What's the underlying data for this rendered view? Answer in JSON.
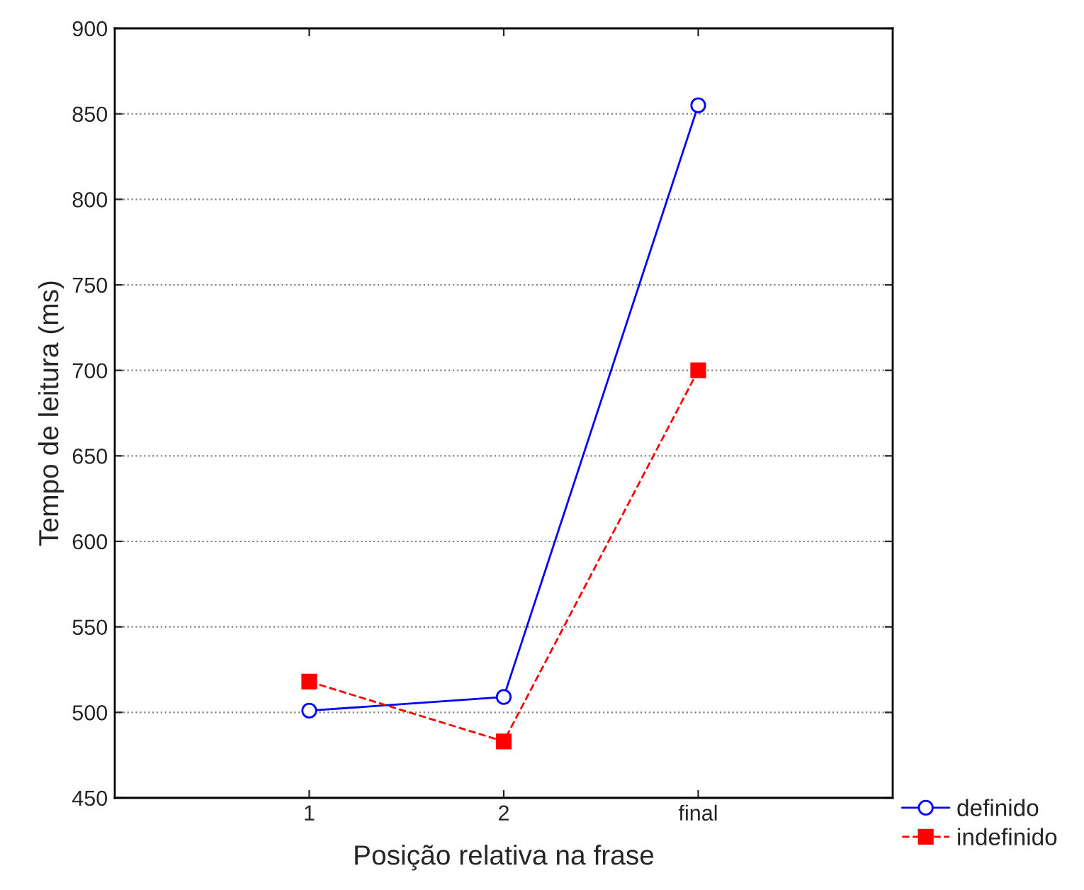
{
  "chart_data": {
    "type": "line",
    "xlabel": "Posição relativa na frase",
    "ylabel": "Tempo de leitura (ms)",
    "categories": [
      "1",
      "2",
      "final"
    ],
    "series": [
      {
        "name": "definido",
        "color": "#0000ff",
        "values": [
          501,
          509,
          855
        ],
        "marker": "circle",
        "line_style": "solid"
      },
      {
        "name": "indefinido",
        "color": "#ff0000",
        "values": [
          518,
          483,
          700
        ],
        "marker": "square",
        "line_style": "dashed"
      }
    ],
    "ylim": [
      450,
      900
    ],
    "yticks": [
      450,
      500,
      550,
      600,
      650,
      700,
      750,
      800,
      850,
      900
    ],
    "grid": "y",
    "legend": "bottom right"
  }
}
